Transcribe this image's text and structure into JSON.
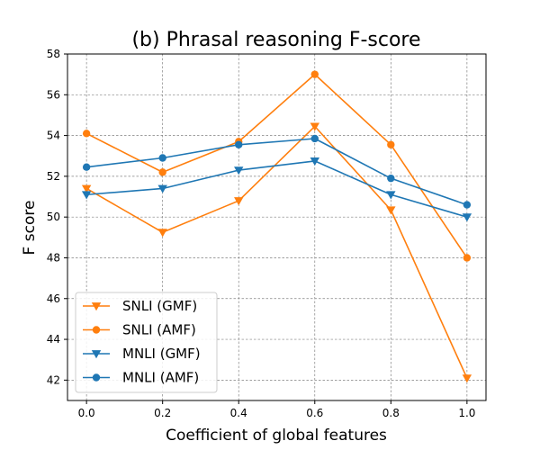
{
  "chart_data": {
    "type": "line",
    "title": "(b) Phrasal reasoning F-score",
    "xlabel": "Coefficient of global features",
    "ylabel": "F score",
    "x": [
      0.0,
      0.2,
      0.4,
      0.6,
      0.8,
      1.0
    ],
    "x_tick_labels": [
      "0.0",
      "0.2",
      "0.4",
      "0.6",
      "0.8",
      "1.0"
    ],
    "xlim": [
      -0.05,
      1.05
    ],
    "ylim": [
      41,
      58
    ],
    "y_ticks": [
      42,
      44,
      46,
      48,
      50,
      52,
      54,
      56,
      58
    ],
    "y_tick_labels": [
      "42",
      "44",
      "46",
      "48",
      "50",
      "52",
      "54",
      "56",
      "58"
    ],
    "grid": true,
    "legend_position": "lower-left",
    "series": [
      {
        "name": "SNLI (GMF)",
        "values": [
          51.4,
          49.25,
          50.8,
          54.45,
          50.35,
          42.1
        ],
        "color": "#ff7f0e",
        "marker": "triangle-down"
      },
      {
        "name": "SNLI (AMF)",
        "values": [
          54.1,
          52.2,
          53.7,
          57.0,
          53.55,
          48.0
        ],
        "color": "#ff7f0e",
        "marker": "circle"
      },
      {
        "name": "MNLI (GMF)",
        "values": [
          51.1,
          51.4,
          52.3,
          52.75,
          51.1,
          50.0
        ],
        "color": "#1f77b4",
        "marker": "triangle-down"
      },
      {
        "name": "MNLI (AMF)",
        "values": [
          52.45,
          52.9,
          53.55,
          53.85,
          51.9,
          50.6
        ],
        "color": "#1f77b4",
        "marker": "circle"
      }
    ]
  }
}
